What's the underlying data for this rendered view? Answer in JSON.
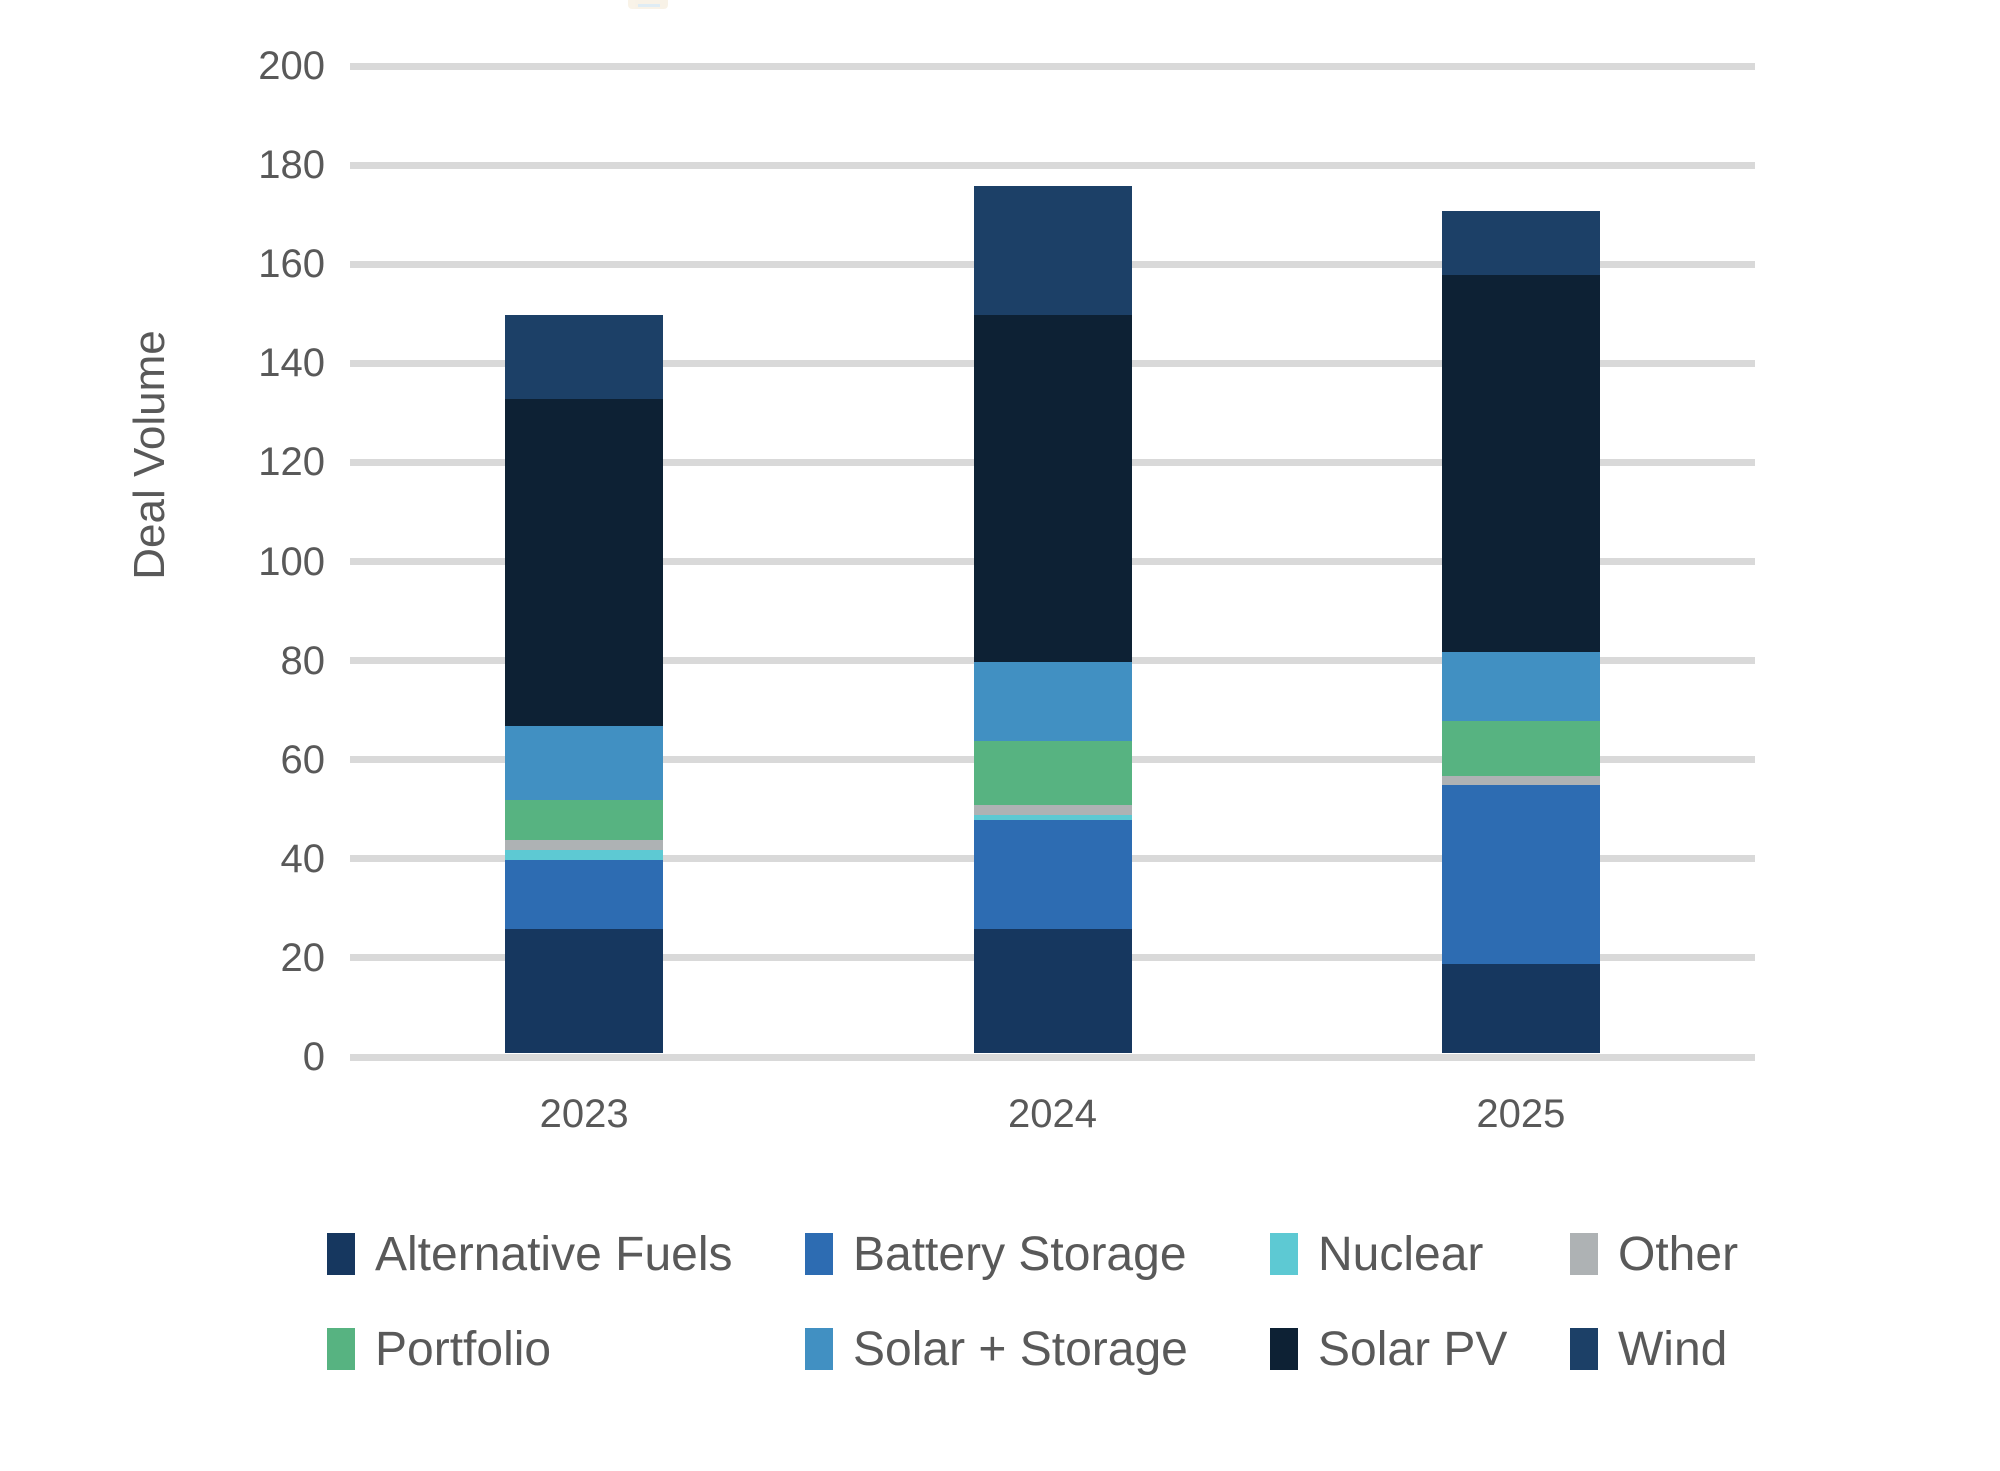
{
  "chart_data": {
    "type": "bar",
    "stacked": true,
    "title": "",
    "xlabel": "",
    "ylabel": "Deal Volume",
    "ylim": [
      0,
      200
    ],
    "ytick_step": 20,
    "grid": true,
    "legend_position": "bottom",
    "categories": [
      "2023",
      "2024",
      "2025"
    ],
    "series": [
      {
        "name": "Alternative Fuels",
        "color": "#16375f",
        "values": [
          25,
          25,
          18
        ]
      },
      {
        "name": "Battery Storage",
        "color": "#2d6cb2",
        "values": [
          14,
          22,
          36
        ]
      },
      {
        "name": "Nuclear",
        "color": "#5dc9d3",
        "values": [
          2,
          1,
          0
        ]
      },
      {
        "name": "Other",
        "color": "#aeb2b4",
        "values": [
          2,
          2,
          2
        ]
      },
      {
        "name": "Portfolio",
        "color": "#57b381",
        "values": [
          8,
          13,
          11
        ]
      },
      {
        "name": "Solar + Storage",
        "color": "#4190c2",
        "values": [
          15,
          16,
          14
        ]
      },
      {
        "name": "Solar PV",
        "color": "#0d2134",
        "values": [
          66,
          70,
          76
        ]
      },
      {
        "name": "Wind",
        "color": "#1c4067",
        "values": [
          17,
          26,
          13
        ]
      }
    ],
    "totals": [
      149,
      175,
      170
    ],
    "gridline_color": "#d9d9d9",
    "axis_text_color": "#595959"
  }
}
